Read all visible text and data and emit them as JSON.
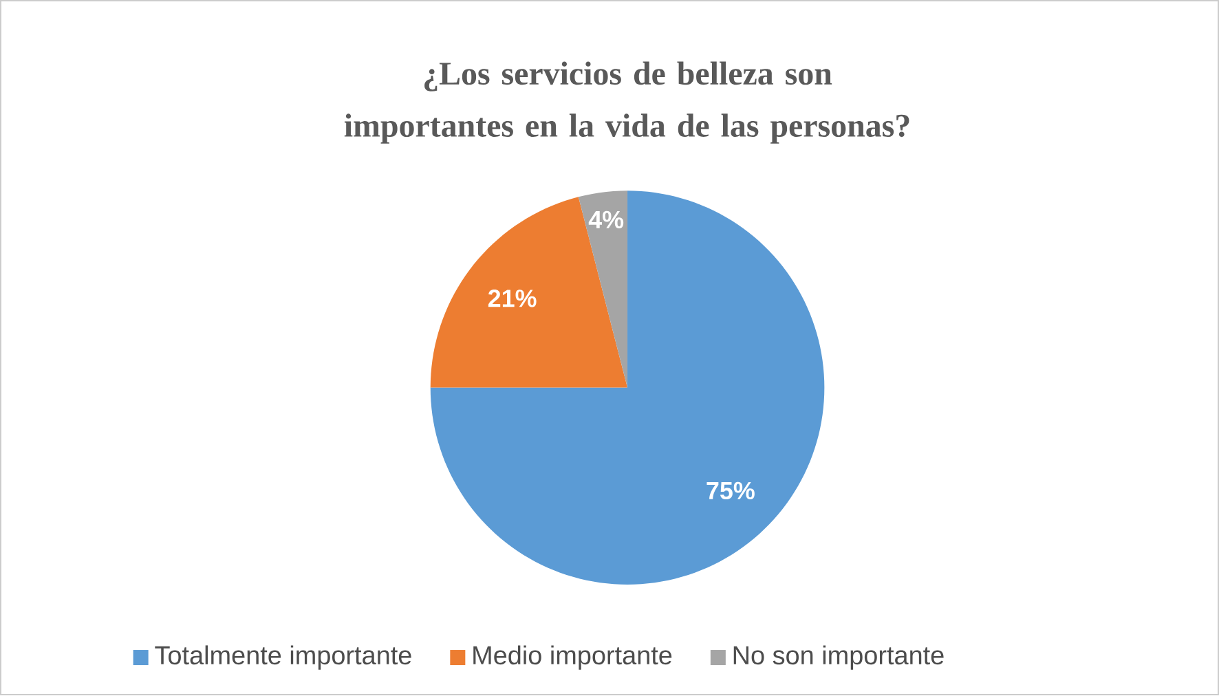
{
  "chart_data": {
    "type": "pie",
    "title": "¿Los servicios de belleza son importantes en la vida de las personas?",
    "categories": [
      "Totalmente importante",
      "Medio importante",
      "No son importante"
    ],
    "values": [
      75,
      21,
      4
    ],
    "colors": [
      "#5b9bd5",
      "#ed7d31",
      "#a5a5a5"
    ],
    "value_labels": [
      "75%",
      "21%",
      "4%"
    ],
    "legend": "bottom"
  }
}
